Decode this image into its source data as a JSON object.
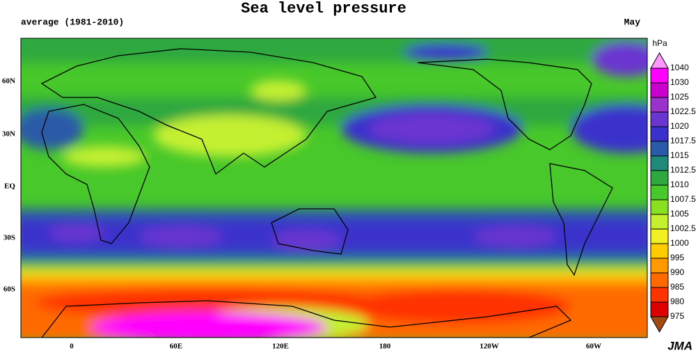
{
  "header": {
    "title": "Sea level pressure",
    "subtitle": "average (1981-2010)",
    "month": "May"
  },
  "map": {
    "lat_labels": [
      "60N",
      "30N",
      "EQ",
      "30S",
      "60S"
    ],
    "lon_labels": [
      "0",
      "60E",
      "120E",
      "180",
      "120W",
      "60W"
    ]
  },
  "colorbar": {
    "unit": "hPa",
    "levels": [
      1040,
      1030,
      1025,
      1022.5,
      1020,
      1017.5,
      1015,
      1012.5,
      1010,
      1007.5,
      1005,
      1002.5,
      1000,
      995,
      990,
      985,
      980,
      975
    ],
    "colors": [
      "#ff99ff",
      "#ff00ff",
      "#cc00cc",
      "#9933cc",
      "#6a35d0",
      "#3a30cc",
      "#2a5aa8",
      "#1f8a7a",
      "#2fa840",
      "#48c82a",
      "#88e020",
      "#c4f030",
      "#f2f020",
      "#ffcc00",
      "#ff9900",
      "#ff6a00",
      "#ff3300",
      "#dd0000",
      "#a34a10"
    ]
  },
  "footer": {
    "credit": "JMA"
  }
}
